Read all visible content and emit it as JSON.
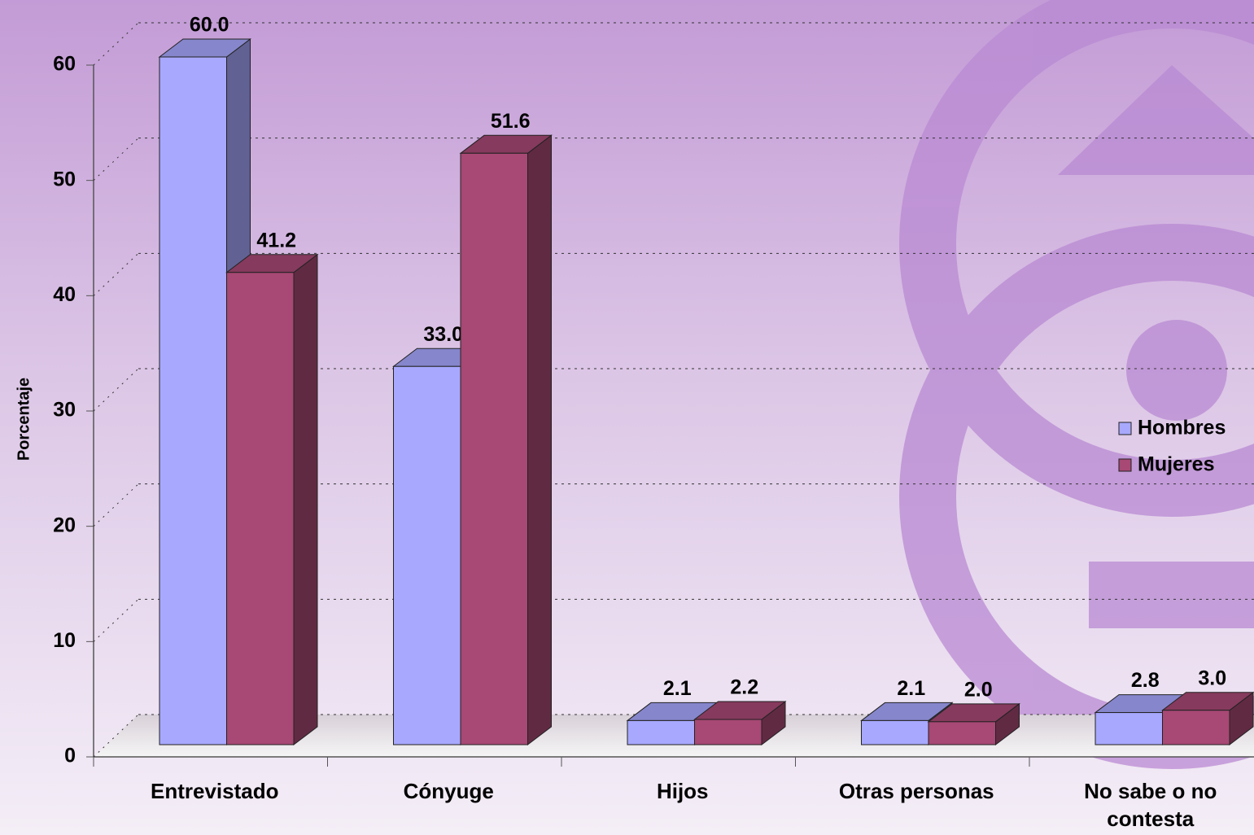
{
  "chart_data": {
    "type": "bar3d",
    "y_label": "Porcentaje",
    "categories": [
      "Entrevistado",
      "Cónyuge",
      "Hijos",
      "Otras personas",
      "No sabe o no contesta"
    ],
    "series": [
      {
        "name": "Hombres",
        "color": "#a8a8ff",
        "values": [
          60.0,
          33.0,
          2.1,
          2.1,
          2.8
        ],
        "value_labels": [
          "60.0",
          "33.0",
          "2.1",
          "2.1",
          "2.8"
        ]
      },
      {
        "name": "Mujeres",
        "color": "#a84874",
        "values": [
          41.2,
          51.6,
          2.2,
          2.0,
          3.0
        ],
        "value_labels": [
          "41.2",
          "51.6",
          "2.2",
          "2.0",
          "3.0"
        ]
      }
    ],
    "ylim": [
      0,
      60
    ],
    "yticks": [
      0,
      10,
      20,
      30,
      40,
      50,
      60
    ],
    "grid": true,
    "legend": "right"
  }
}
